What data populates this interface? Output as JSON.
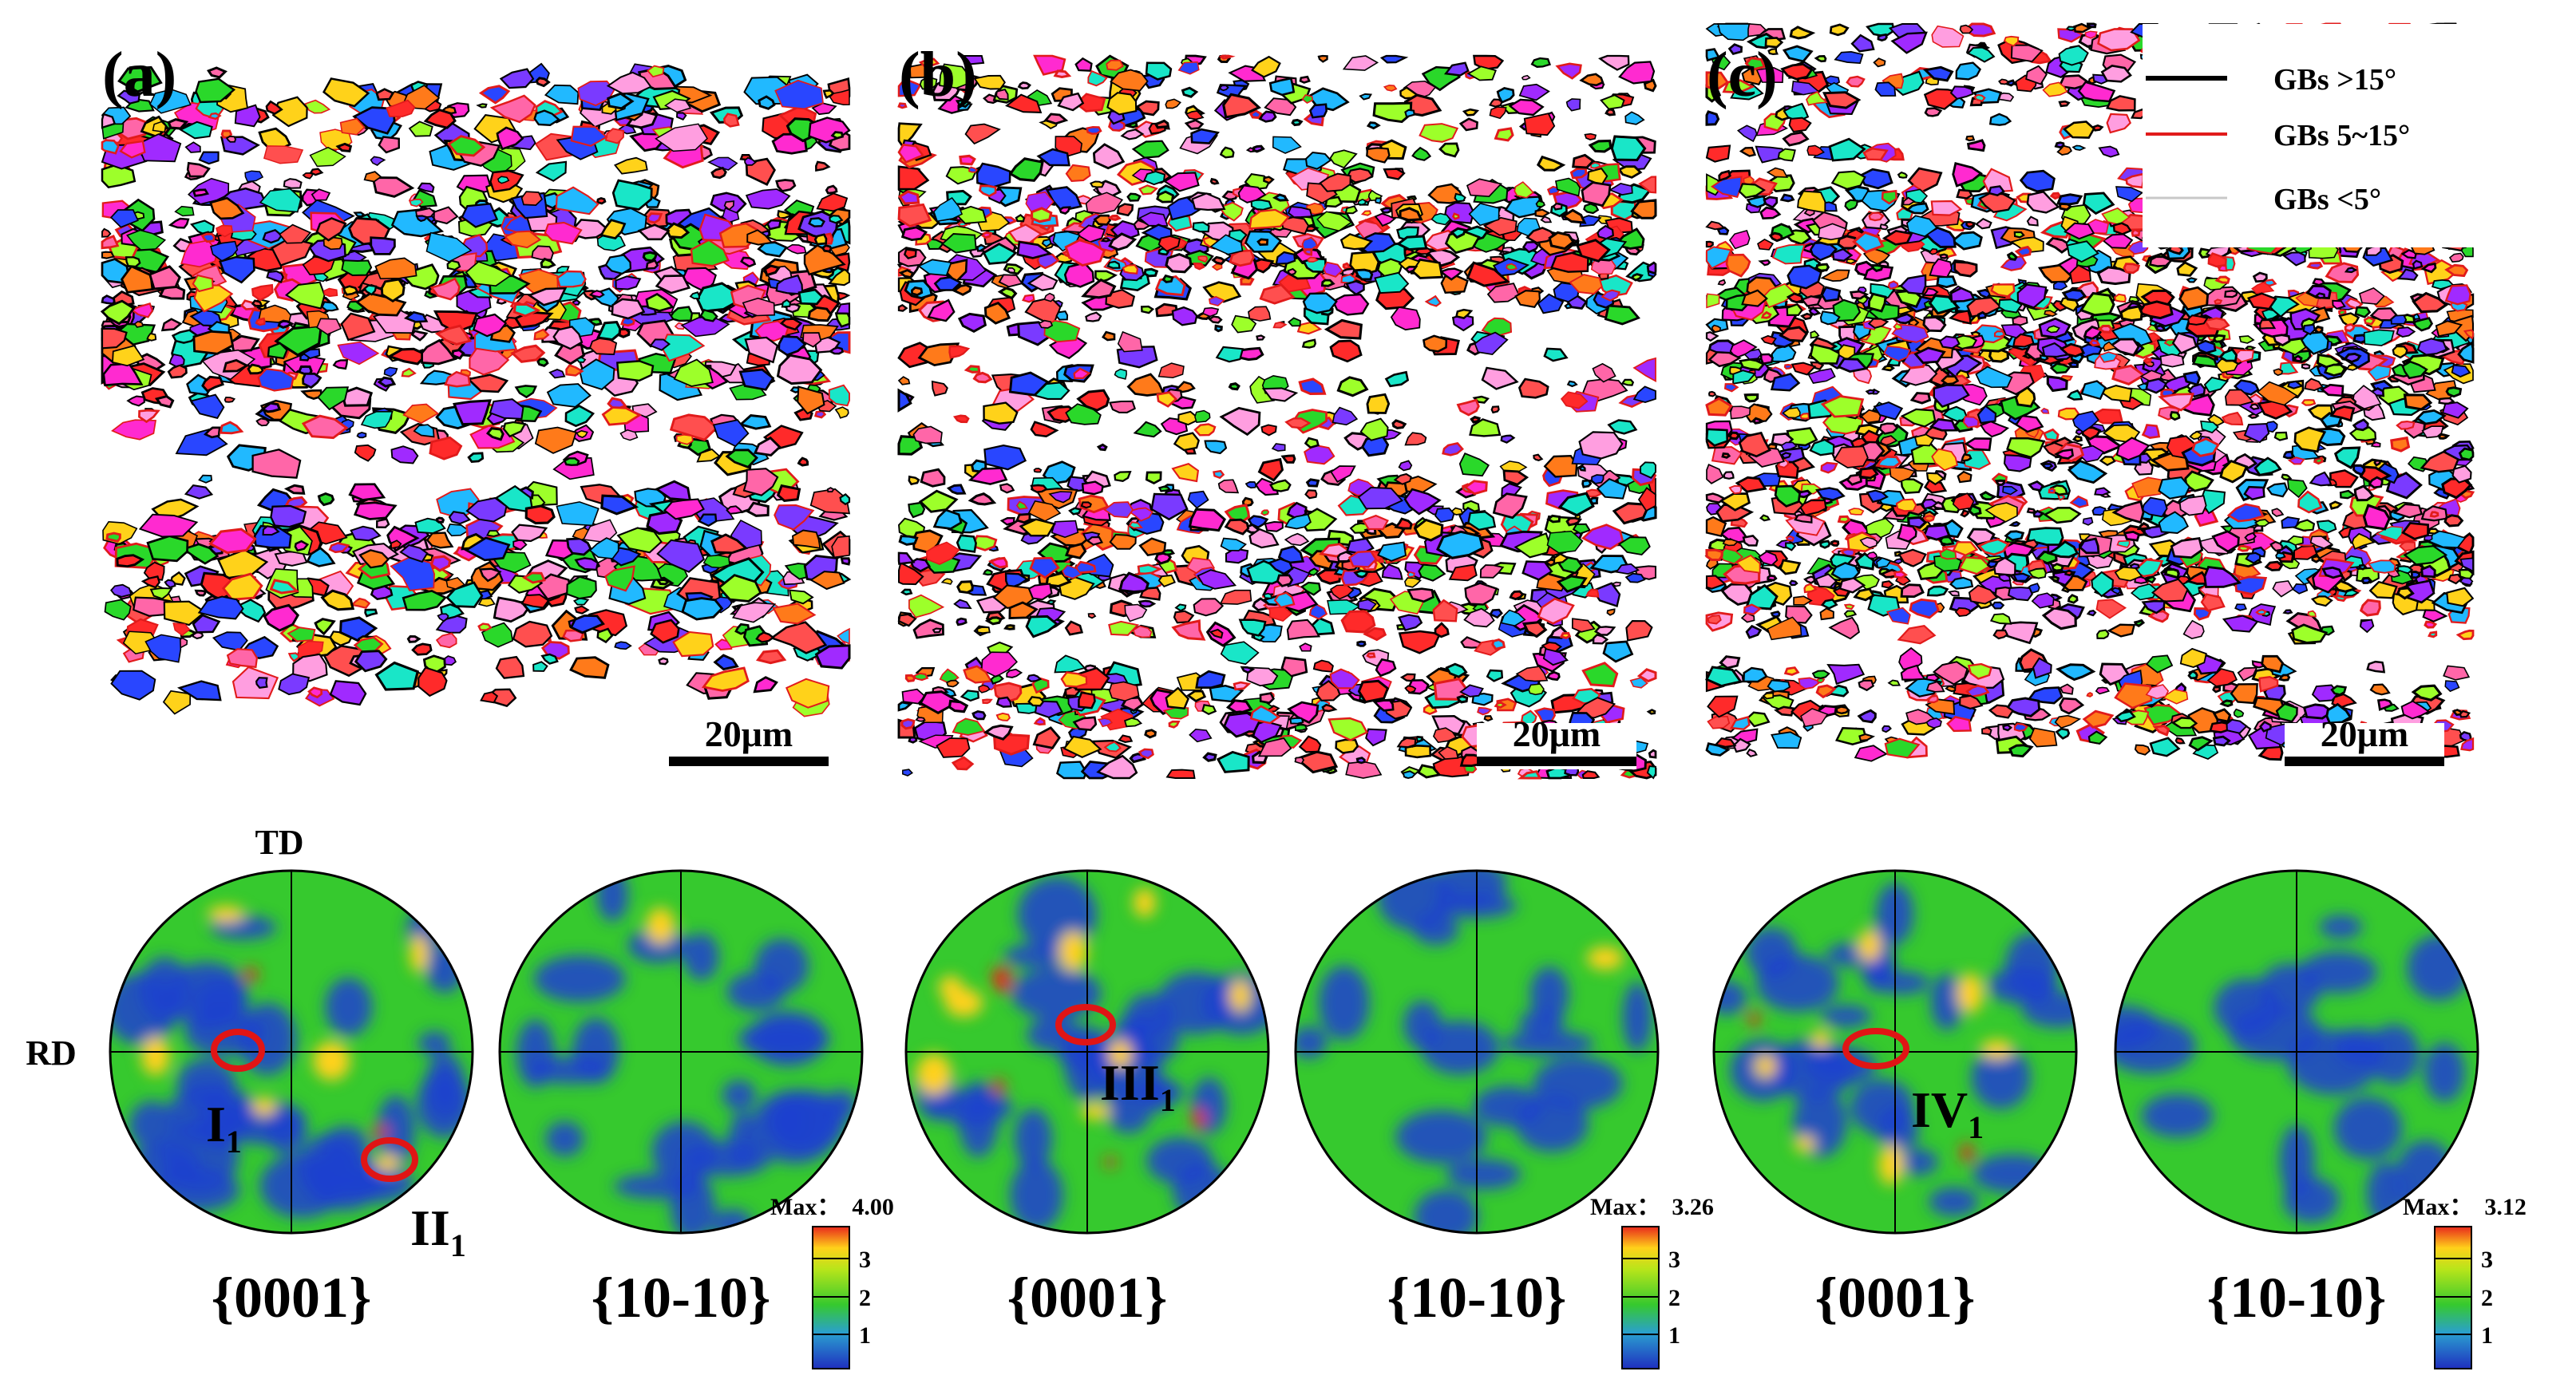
{
  "panels": [
    {
      "id": "a",
      "label": "(a)",
      "scale_bar": "20μm"
    },
    {
      "id": "b",
      "label": "(b)",
      "scale_bar": "20μm"
    },
    {
      "id": "c",
      "label": "(c)",
      "scale_bar": "20μm"
    }
  ],
  "legend": {
    "items": [
      {
        "text": "GBs  >15°",
        "color": "#000000"
      },
      {
        "text": "GBs  5~15°",
        "color": "#e11b1b"
      },
      {
        "text": "GBs  <5°",
        "color": "#c8c8c8"
      }
    ]
  },
  "axis_labels": {
    "td": "TD",
    "rd": "RD"
  },
  "pole_figures": {
    "plane_0001": "{0001}",
    "plane_1010": "{10-10}",
    "colorbar_ticks": [
      "3",
      "2",
      "1"
    ],
    "max_prefix": "Max：",
    "sets": [
      {
        "max": "4.00",
        "markers": [
          {
            "label": "I",
            "sub": "1"
          },
          {
            "label": "II",
            "sub": "1"
          }
        ]
      },
      {
        "max": "3.26",
        "markers": [
          {
            "label": "III",
            "sub": "1"
          }
        ]
      },
      {
        "max": "3.12",
        "markers": [
          {
            "label": "IV",
            "sub": "1"
          }
        ]
      }
    ]
  },
  "colors": {
    "grain_palette": [
      "#ff2a2a",
      "#ff7a1a",
      "#ffd21a",
      "#2ad82a",
      "#19e6c8",
      "#21b9ff",
      "#2946ff",
      "#a02aff",
      "#ff2ad0",
      "#ff66a8",
      "#ff9ee0",
      "#7a3aff",
      "#9dff2a",
      "#ff4f4f"
    ],
    "pf_low": "#1f3fd0",
    "pf_mid": "#36c92e",
    "pf_high": "#ffd11a",
    "pf_peak": "#e8281c",
    "marker_circle": "#e01515"
  }
}
